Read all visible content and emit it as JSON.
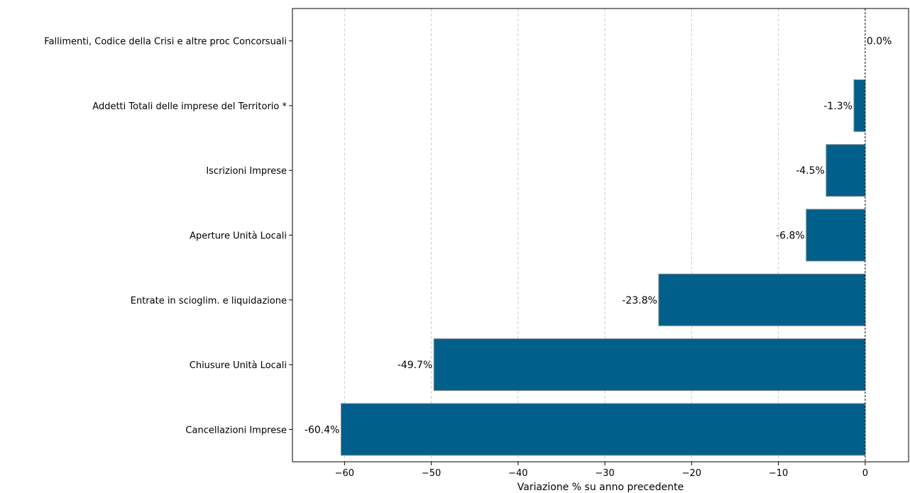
{
  "chart_data": {
    "type": "bar",
    "orientation": "horizontal",
    "categories": [
      "Fallimenti, Codice della Crisi e altre proc Concorsuali",
      "Addetti Totali delle imprese del Territorio *",
      "Iscrizioni Imprese",
      "Aperture Unità Locali",
      "Entrate in scioglim. e liquidazione",
      "Chiusure Unità Locali",
      "Cancellazioni Imprese"
    ],
    "values": [
      0.0,
      -1.3,
      -4.5,
      -6.8,
      -23.8,
      -49.7,
      -60.4
    ],
    "value_labels": [
      "0.0%",
      "-1.3%",
      "-4.5%",
      "-6.8%",
      "-23.8%",
      "-49.7%",
      "-60.4%"
    ],
    "title": "",
    "xlabel": "Variazione % su anno precedente",
    "ylabel": "",
    "xlim": [
      -66,
      5
    ],
    "x_ticks": [
      -60,
      -50,
      -40,
      -30,
      -20,
      -10,
      0
    ],
    "x_tick_labels": [
      "−60",
      "−50",
      "−40",
      "−30",
      "−20",
      "−10",
      "0"
    ],
    "grid": "vertical dashed",
    "reference_line": 0,
    "bar_color": "#005f8b",
    "bar_edge_color": "#8a8a8a"
  }
}
